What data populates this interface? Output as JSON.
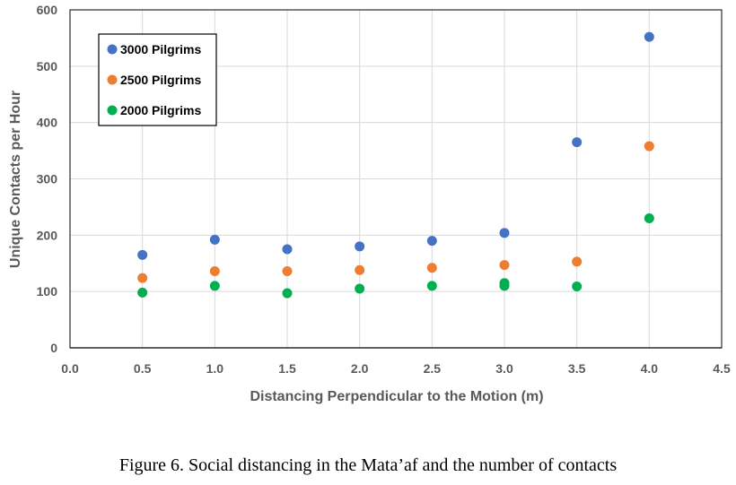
{
  "chart_data": {
    "type": "scatter",
    "xlabel": "Distancing Perpendicular to the Motion (m)",
    "ylabel": "Unique Contacts  per Hour",
    "xlim": [
      0,
      4.5
    ],
    "ylim": [
      0,
      600
    ],
    "x_ticks": [
      "0.0",
      "0.5",
      "1.0",
      "1.5",
      "2.0",
      "2.5",
      "3.0",
      "3.5",
      "4.0",
      "4.5"
    ],
    "y_ticks": [
      "0",
      "100",
      "200",
      "300",
      "400",
      "500",
      "600"
    ],
    "grid": true,
    "legend_position": "top-left",
    "series": [
      {
        "name": "3000 Pilgrims",
        "color": "#4472c4",
        "x": [
          0.5,
          1.0,
          1.5,
          2.0,
          2.5,
          3.0,
          3.5,
          4.0
        ],
        "y": [
          165,
          192,
          175,
          180,
          190,
          204,
          365,
          552
        ]
      },
      {
        "name": "2500 Pilgrims",
        "color": "#ed7d31",
        "x": [
          0.5,
          1.0,
          1.5,
          2.0,
          2.5,
          3.0,
          3.5,
          4.0
        ],
        "y": [
          124,
          136,
          136,
          138,
          142,
          147,
          153,
          358
        ]
      },
      {
        "name": "2000 Pilgrims",
        "color": "#00b050",
        "x": [
          0.5,
          1.0,
          1.5,
          2.0,
          2.5,
          3.0,
          3.0,
          3.5,
          4.0
        ],
        "y": [
          98,
          110,
          97,
          105,
          110,
          115,
          110,
          109,
          230
        ]
      }
    ]
  },
  "caption": "Figure 6. Social distancing in the Mata’af and the number of contacts"
}
